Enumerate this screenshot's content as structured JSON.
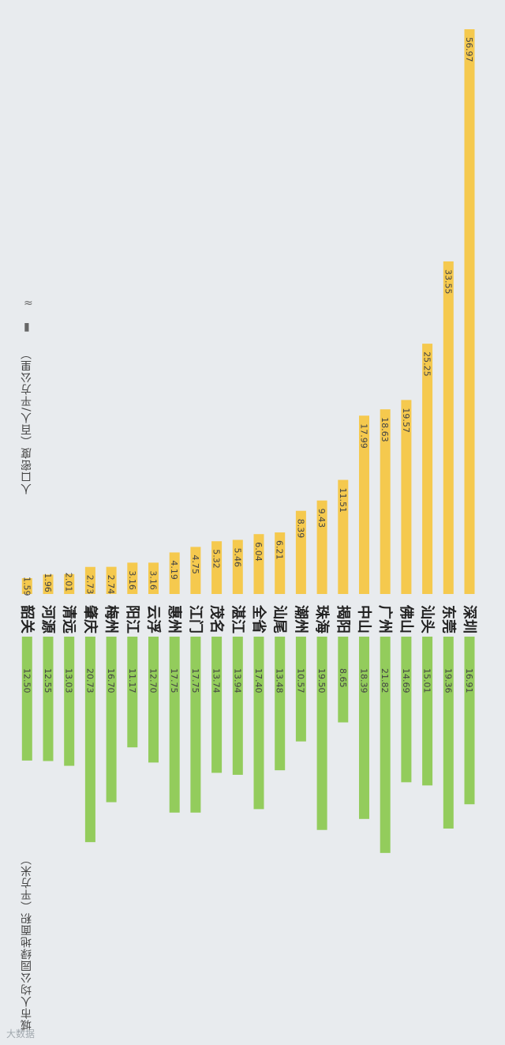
{
  "chart_data": {
    "type": "bar",
    "categories": [
      "深圳",
      "东莞",
      "汕头",
      "佛山",
      "广州",
      "中山",
      "揭阳",
      "珠海",
      "潮州",
      "汕尾",
      "全省",
      "湛江",
      "茂名",
      "江门",
      "惠州",
      "云浮",
      "阳江",
      "梅州",
      "肇庆",
      "清远",
      "河源",
      "韶关"
    ],
    "series": [
      {
        "name": "人口密度（百人/平方公里）",
        "color": "#f5c94e",
        "values": [
          56.97,
          33.55,
          25.25,
          19.57,
          18.63,
          17.99,
          11.51,
          9.43,
          8.39,
          6.21,
          6.04,
          5.46,
          5.32,
          4.75,
          4.19,
          3.16,
          3.16,
          2.74,
          2.73,
          2.01,
          1.96,
          1.59
        ],
        "labels": [
          "56.97",
          "33.55",
          "25.25",
          "19.57",
          "18.63",
          "17.99",
          "11.51",
          "9.43",
          "8.39",
          "6.21",
          "6.04",
          "5.46",
          "5.32",
          "4.75",
          "4.19",
          "3.16",
          "3.16",
          "2.74",
          "2.73",
          "2.01",
          "1.96",
          "1.59"
        ]
      },
      {
        "name": "城市人均公园绿地面积（平方米）",
        "color": "#93cc5c",
        "values": [
          16.91,
          19.36,
          15.01,
          14.69,
          21.82,
          18.39,
          8.65,
          19.5,
          10.57,
          13.48,
          17.4,
          13.94,
          13.74,
          17.75,
          17.75,
          12.7,
          11.17,
          16.7,
          20.73,
          13.03,
          12.55,
          12.5
        ],
        "labels": [
          "16.91",
          "19.36",
          "15.01",
          "14.69",
          "21.82",
          "18.39",
          "8.65",
          "19.50",
          "10.57",
          "13.48",
          "17.40",
          "13.94",
          "13.74",
          "17.75",
          "17.75",
          "12.70",
          "11.17",
          "16.70",
          "20.73",
          "13.03",
          "12.55",
          "12.50"
        ]
      }
    ]
  },
  "legend_icons": {
    "a": "≈",
    "b": "▮"
  },
  "watermark": "大数据"
}
